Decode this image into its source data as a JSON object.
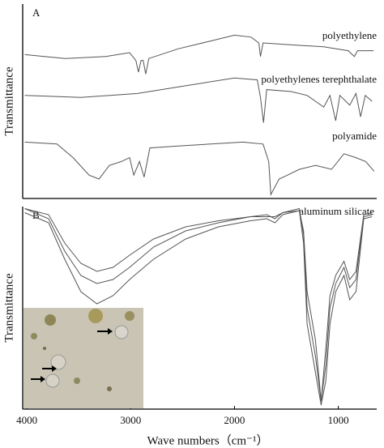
{
  "chart_data": [
    {
      "type": "line",
      "panel": "A",
      "ylabel": "Transmittance",
      "xlim": [
        4040,
        630
      ],
      "ylim": [
        0,
        100
      ],
      "annotations": [
        "polyethylene",
        "polyethylenes terephthalate",
        "polyamide"
      ],
      "series": [
        {
          "name": "polyethylene",
          "color": "#555555",
          "x": [
            4020,
            3630,
            3240,
            3010,
            2950,
            2925,
            2900,
            2880,
            2855,
            2825,
            2540,
            2230,
            2000,
            1840,
            1765,
            1750,
            1725,
            1450,
            1140,
            905,
            845,
            815,
            660
          ],
          "values": [
            74,
            72,
            73,
            75,
            71,
            65,
            71,
            71,
            64,
            72,
            77,
            81,
            84,
            83,
            80,
            73,
            80,
            79,
            78,
            76,
            73,
            76,
            76
          ]
        },
        {
          "name": "polyethylenes terephthalate",
          "color": "#555555",
          "x": [
            4020,
            3480,
            2935,
            2465,
            2000,
            1780,
            1750,
            1720,
            1690,
            1455,
            1300,
            1220,
            1140,
            1080,
            1025,
            985,
            890,
            830,
            785,
            740,
            675
          ],
          "values": [
            53,
            52,
            54,
            58,
            62,
            61,
            52,
            39,
            56,
            55,
            53,
            50,
            47,
            53,
            40,
            53,
            48,
            54,
            42,
            53,
            50
          ]
        },
        {
          "name": "polyamide",
          "color": "#555555",
          "x": [
            4020,
            3710,
            3555,
            3400,
            3305,
            3205,
            3090,
            3010,
            2970,
            2915,
            2870,
            2815,
            2545,
            2230,
            1920,
            1725,
            1670,
            1650,
            1570,
            1490,
            1375,
            1220,
            1065,
            945,
            830,
            735,
            655
          ],
          "values": [
            29,
            28,
            21,
            12,
            10,
            17,
            19,
            21,
            12,
            19,
            11,
            26,
            27,
            28,
            29,
            28,
            19,
            2,
            10,
            12,
            15,
            17,
            15,
            23,
            21,
            19,
            14
          ]
        }
      ]
    },
    {
      "type": "line",
      "panel": "B",
      "ylabel": "Transmittance",
      "xlabel": "Wave numbers（cm⁻¹）",
      "xlim": [
        4040,
        630
      ],
      "ylim": [
        0,
        100
      ],
      "xticks": [
        4000,
        3000,
        2000,
        1000
      ],
      "annotations": [
        "aluminum silicate"
      ],
      "x": [
        4020,
        3790,
        3635,
        3480,
        3325,
        3170,
        3010,
        2780,
        2470,
        2155,
        1845,
        1690,
        1610,
        1535,
        1375,
        1335,
        1300,
        1220,
        1165,
        1120,
        1080,
        1025,
        945,
        890,
        830,
        755,
        675
      ],
      "series": [
        {
          "color": "#555555",
          "values": [
            97,
            92,
            74,
            58,
            52,
            56,
            64,
            74,
            84,
            90,
            93,
            94,
            92,
            96,
            98,
            82,
            42,
            18,
            2,
            14,
            42,
            58,
            66,
            54,
            58,
            94,
            95
          ]
        },
        {
          "color": "#555555",
          "values": [
            99,
            94,
            78,
            66,
            62,
            64,
            70,
            80,
            88,
            92,
            95,
            96,
            94,
            97,
            99,
            86,
            50,
            26,
            4,
            22,
            50,
            62,
            70,
            60,
            64,
            95,
            96
          ]
        },
        {
          "color": "#555555",
          "values": [
            99,
            96,
            82,
            72,
            68,
            70,
            76,
            84,
            90,
            93,
            95,
            95,
            95,
            97,
            98,
            88,
            58,
            34,
            4,
            30,
            56,
            66,
            73,
            64,
            68,
            96,
            97
          ]
        }
      ]
    }
  ]
}
